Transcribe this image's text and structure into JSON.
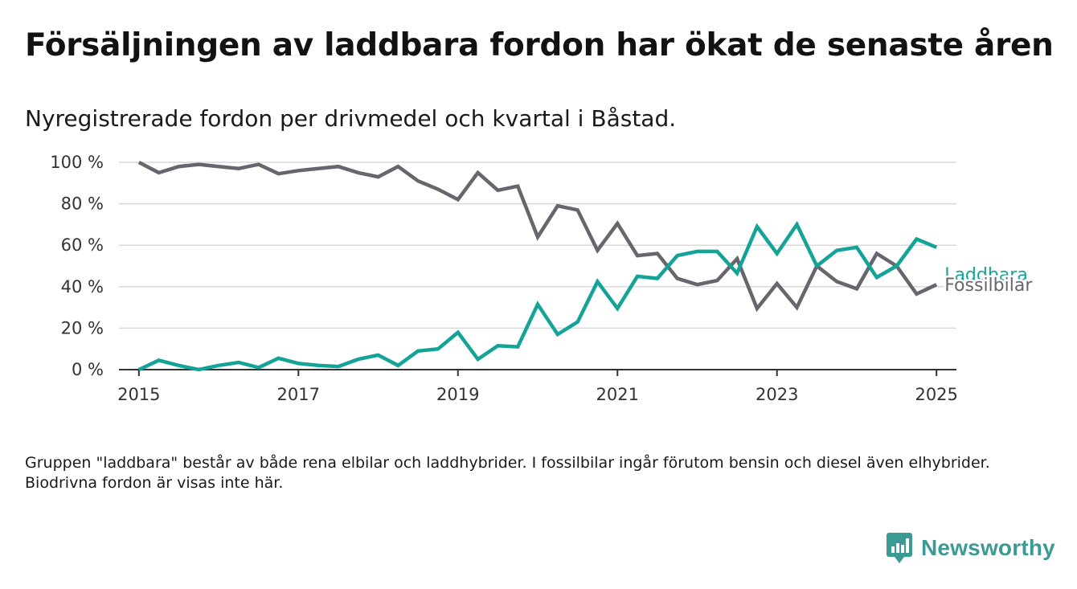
{
  "header": {
    "title": "Försäljningen av laddbara fordon har ökat de senaste åren",
    "subtitle": "Nyregistrerade fordon per drivmedel och kvartal i Båstad."
  },
  "footer": {
    "note": "Gruppen \"laddbara\" består av både rena elbilar och laddhybrider. I fossilbilar ingår förutom bensin och diesel även elhybrider. Biodrivna fordon är visas inte här.",
    "brand": "Newsworthy"
  },
  "colors": {
    "laddbara": "#13a397",
    "fossil": "#67656d",
    "grid": "#d9d9d9",
    "axis": "#333333",
    "brand": "#3c9a95"
  },
  "chart_data": {
    "type": "line",
    "x_start": "2015-01",
    "x_step": "quarter",
    "xlim": [
      2014.75,
      2025.25
    ],
    "ylim": [
      0,
      100
    ],
    "y_unit": "%",
    "x_ticks": [
      "2015",
      "2017",
      "2019",
      "2021",
      "2023",
      "2025"
    ],
    "y_ticks": [
      "0 %",
      "20 %",
      "40 %",
      "60 %",
      "80 %",
      "100 %"
    ],
    "grid": true,
    "series": [
      {
        "name": "Laddbara",
        "color": "#13a397",
        "values": [
          0,
          4.5,
          2,
          0,
          2,
          3.5,
          1,
          5.5,
          3,
          2,
          1.5,
          5,
          7,
          2,
          9,
          10,
          18,
          5,
          11.5,
          11,
          31.5,
          17,
          23,
          42.5,
          29.5,
          45,
          44,
          55,
          57,
          57,
          46.5,
          69,
          56,
          70,
          50,
          57.5,
          59,
          44.5,
          50,
          63,
          59
        ]
      },
      {
        "name": "Fossilbilar",
        "color": "#67656d",
        "values": [
          100,
          95,
          98,
          99,
          98,
          97,
          99,
          94.5,
          96,
          97,
          98,
          95,
          93,
          98,
          91,
          87,
          82,
          95,
          86.5,
          88.5,
          64,
          79,
          77,
          57.5,
          70.5,
          55,
          56,
          44,
          41,
          43,
          53.5,
          29.5,
          41.5,
          30,
          50,
          42.5,
          39,
          56,
          50,
          36.5,
          41
        ]
      }
    ]
  }
}
